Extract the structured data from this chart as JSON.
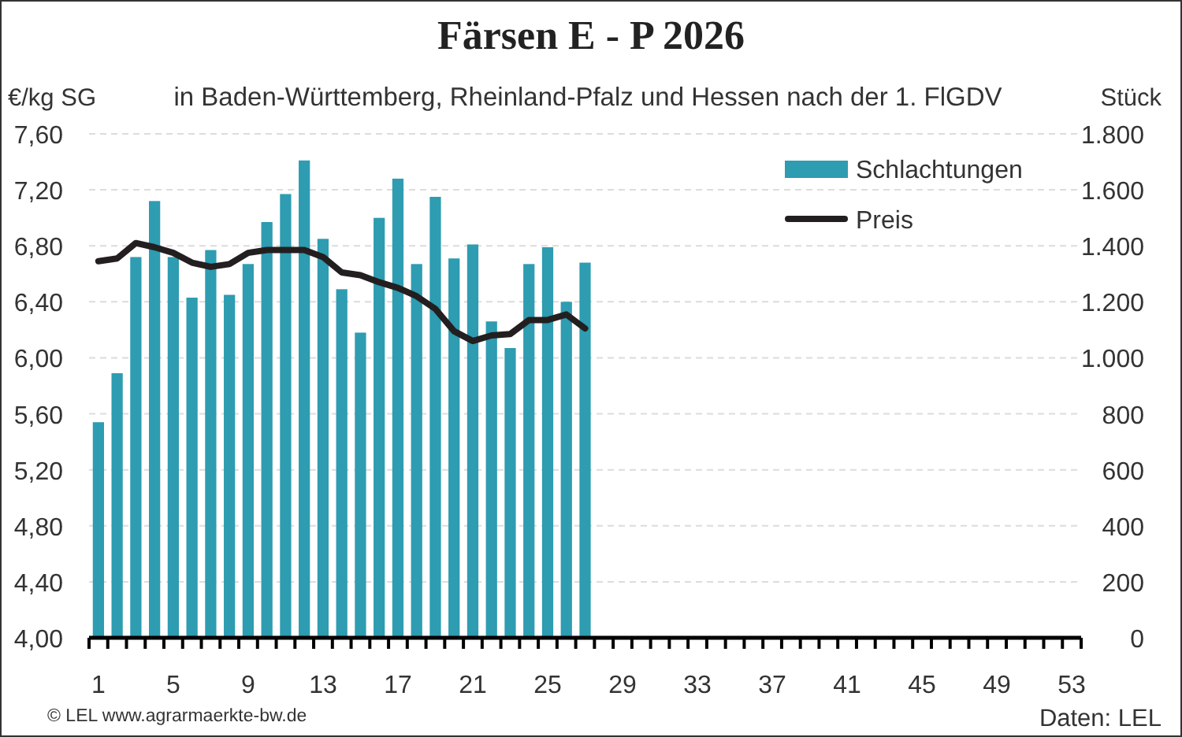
{
  "chart_data": {
    "type": "bar",
    "title": "Färsen E - P 2026",
    "subtitle": "in Baden-Württemberg, Rheinland-Pfalz und Hessen nach der 1. FlGDV",
    "ylabel": "€/kg SG",
    "y2label": "Stück",
    "annotations": [
      "© LEL www.agrarmaerkte-bw.de",
      "Daten: LEL"
    ],
    "categories": [
      "1",
      null,
      null,
      null,
      "5",
      null,
      null,
      null,
      "9",
      null,
      null,
      null,
      "13",
      null,
      null,
      null,
      "17",
      null,
      null,
      null,
      "21",
      null,
      null,
      null,
      "25",
      null,
      null,
      null,
      "29",
      null,
      null,
      null,
      "33",
      null,
      null,
      null,
      "37",
      null,
      null,
      null,
      "41",
      null,
      null,
      null,
      "45",
      null,
      null,
      null,
      "49",
      null,
      null,
      null,
      "53"
    ],
    "series": [
      {
        "name": "Schlachtungen",
        "axis": "y2",
        "color": "#2e9cb1",
        "values": [
          770,
          945,
          1360,
          1560,
          1360,
          1215,
          1385,
          1225,
          1335,
          1485,
          1585,
          1705,
          1425,
          1245,
          1090,
          1500,
          1640,
          1335,
          1575,
          1355,
          1405,
          1130,
          1035,
          1335,
          1395,
          1200,
          1340,
          null,
          null,
          null,
          null,
          null,
          null,
          null,
          null,
          null,
          null,
          null,
          null,
          null,
          null,
          null,
          null,
          null,
          null,
          null,
          null,
          null,
          null,
          null,
          null,
          null,
          null
        ]
      },
      {
        "name": "Preis",
        "type": "line",
        "color": "#231f20",
        "values": [
          6.69,
          6.71,
          6.82,
          6.79,
          6.75,
          6.68,
          6.65,
          6.67,
          6.75,
          6.77,
          6.77,
          6.77,
          6.72,
          6.61,
          6.59,
          6.54,
          6.5,
          6.44,
          6.35,
          6.19,
          6.12,
          6.16,
          6.17,
          6.27,
          6.27,
          6.31,
          6.21,
          null,
          null,
          null,
          null,
          null,
          null,
          null,
          null,
          null,
          null,
          null,
          null,
          null,
          null,
          null,
          null,
          null,
          null,
          null,
          null,
          null,
          null,
          null,
          null,
          null,
          null
        ]
      }
    ],
    "ylim": [
      4,
      7.6
    ],
    "yticks": [
      {
        "value": 4,
        "label": "4,00"
      },
      {
        "value": 4.4,
        "label": "4,40"
      },
      {
        "value": 4.8,
        "label": "4,80"
      },
      {
        "value": 5.2,
        "label": "5,20"
      },
      {
        "value": 5.6,
        "label": "5,60"
      },
      {
        "value": 6,
        "label": "6,00"
      },
      {
        "value": 6.4,
        "label": "6,40"
      },
      {
        "value": 6.8,
        "label": "6,80"
      },
      {
        "value": 7.2,
        "label": "7,20"
      },
      {
        "value": 7.6,
        "label": "7,60"
      }
    ],
    "y2lim": [
      0,
      1800
    ],
    "y2ticks": [
      0,
      200,
      400,
      600,
      800,
      {
        "value": 1000,
        "label": "1.000"
      },
      {
        "value": 1200,
        "label": "1.200"
      },
      {
        "value": 1400,
        "label": "1.400"
      },
      {
        "value": 1600,
        "label": "1.600"
      },
      {
        "value": 1800,
        "label": "1.800"
      }
    ],
    "grid": "y",
    "legend": "top right"
  }
}
